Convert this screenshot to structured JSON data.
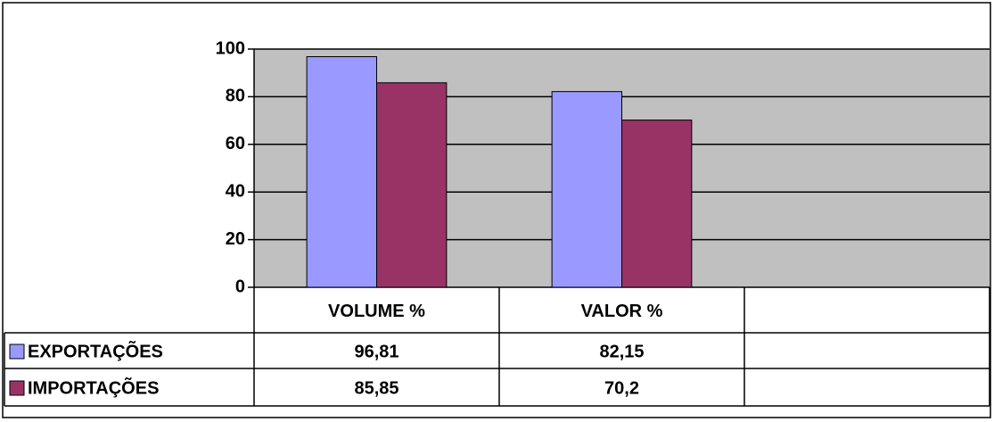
{
  "chart_data": {
    "type": "bar",
    "categories": [
      "VOLUME %",
      "VALOR %",
      null
    ],
    "series": [
      {
        "name": "EXPORTAÇÕES",
        "color": "#9999ff",
        "values": [
          96.81,
          82.15,
          null
        ],
        "value_labels": [
          "96,81",
          "82,15",
          null
        ]
      },
      {
        "name": "IMPORTAÇÕES",
        "color": "#993366",
        "values": [
          85.85,
          70.2,
          null
        ],
        "value_labels": [
          "85,85",
          "70,2",
          null
        ]
      }
    ],
    "ylim": [
      0,
      100
    ],
    "yticks": [
      0,
      20,
      40,
      60,
      80,
      100
    ],
    "grid": true,
    "plot_background": "#c0c0c0",
    "data_table": true
  }
}
